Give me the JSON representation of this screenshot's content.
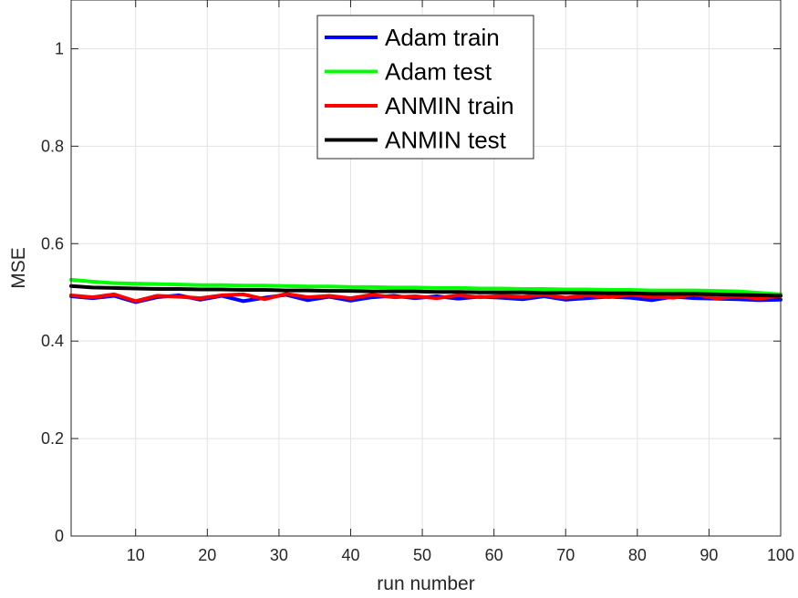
{
  "chart_data": {
    "type": "line",
    "title": "",
    "xlabel": "run number",
    "ylabel": "MSE",
    "xlim": [
      1,
      100
    ],
    "ylim": [
      0,
      1.1
    ],
    "xticks": [
      10,
      20,
      30,
      40,
      50,
      60,
      70,
      80,
      90,
      100
    ],
    "yticks": [
      0,
      0.2,
      0.4,
      0.6,
      0.8,
      1
    ],
    "xtick_labels": [
      "10",
      "20",
      "30",
      "40",
      "50",
      "60",
      "70",
      "80",
      "90",
      "100"
    ],
    "ytick_labels": [
      "0",
      "0.2",
      "0.4",
      "0.6",
      "0.8",
      "1"
    ],
    "grid": true,
    "legend_position": "top-center",
    "x_values": [
      1,
      4,
      7,
      10,
      13,
      16,
      19,
      22,
      25,
      28,
      31,
      34,
      37,
      40,
      43,
      46,
      49,
      52,
      55,
      58,
      61,
      64,
      67,
      70,
      73,
      76,
      79,
      82,
      85,
      88,
      91,
      94,
      97,
      100
    ],
    "series": [
      {
        "name": "Adam train",
        "color": "#0000ff",
        "values": [
          0.492,
          0.488,
          0.493,
          0.48,
          0.49,
          0.494,
          0.485,
          0.493,
          0.482,
          0.489,
          0.495,
          0.484,
          0.491,
          0.483,
          0.49,
          0.493,
          0.488,
          0.492,
          0.487,
          0.491,
          0.489,
          0.486,
          0.492,
          0.485,
          0.488,
          0.491,
          0.489,
          0.484,
          0.491,
          0.488,
          0.487,
          0.486,
          0.484,
          0.485
        ]
      },
      {
        "name": "Adam test",
        "color": "#00ff00",
        "values": [
          0.526,
          0.522,
          0.519,
          0.518,
          0.517,
          0.516,
          0.515,
          0.515,
          0.514,
          0.514,
          0.513,
          0.512,
          0.512,
          0.511,
          0.511,
          0.51,
          0.51,
          0.509,
          0.509,
          0.508,
          0.508,
          0.507,
          0.507,
          0.506,
          0.506,
          0.505,
          0.505,
          0.504,
          0.504,
          0.504,
          0.503,
          0.502,
          0.499,
          0.496
        ]
      },
      {
        "name": "ANMIN train",
        "color": "#ff0000",
        "values": [
          0.494,
          0.49,
          0.496,
          0.482,
          0.493,
          0.491,
          0.488,
          0.494,
          0.496,
          0.486,
          0.497,
          0.49,
          0.493,
          0.488,
          0.495,
          0.49,
          0.492,
          0.488,
          0.494,
          0.49,
          0.493,
          0.491,
          0.495,
          0.489,
          0.494,
          0.49,
          0.495,
          0.491,
          0.489,
          0.496,
          0.488,
          0.492,
          0.487,
          0.493
        ]
      },
      {
        "name": "ANMIN test",
        "color": "#000000",
        "values": [
          0.513,
          0.51,
          0.509,
          0.508,
          0.507,
          0.507,
          0.506,
          0.506,
          0.505,
          0.505,
          0.504,
          0.504,
          0.503,
          0.503,
          0.502,
          0.502,
          0.502,
          0.501,
          0.501,
          0.5,
          0.5,
          0.5,
          0.499,
          0.499,
          0.499,
          0.498,
          0.498,
          0.497,
          0.497,
          0.497,
          0.496,
          0.495,
          0.494,
          0.493
        ]
      }
    ]
  }
}
